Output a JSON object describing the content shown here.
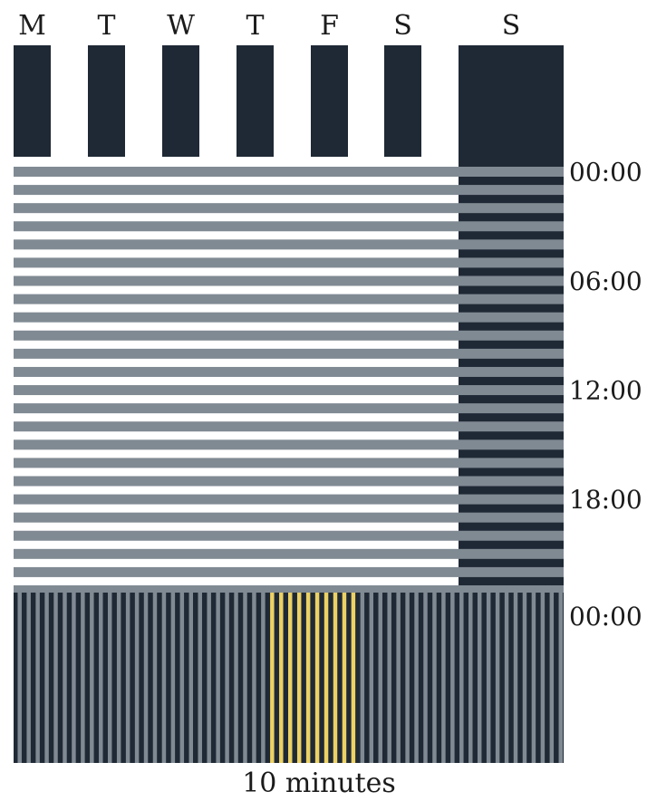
{
  "days": [
    "M",
    "T",
    "W",
    "T",
    "F",
    "S",
    "S"
  ],
  "time_labels": [
    "00:00",
    "06:00",
    "12:00",
    "18:00",
    "00:00"
  ],
  "bottom_label": "10 minutes",
  "rows_per_day": 24,
  "minute_stripes": 61,
  "highlight_stripes": {
    "start": 28,
    "end": 37
  },
  "colors": {
    "dark": "#1f2935",
    "gray": "#808a93",
    "highlight": "#ecd165",
    "background": "#ffffff",
    "text": "#1b1b1b"
  }
}
